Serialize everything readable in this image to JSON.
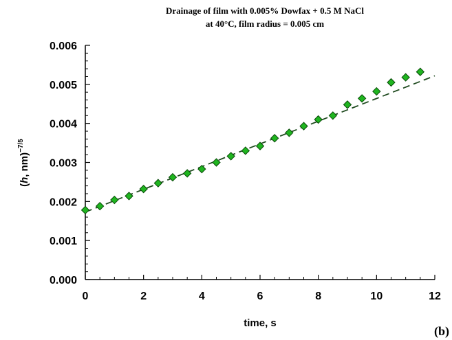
{
  "chart_data": {
    "type": "scatter",
    "title_line1": "Drainage of film with 0.005% Dowfax + 0.5 M NaCl",
    "title_line2": "at 40°C, film radius = 0.005 cm",
    "xlabel": "time, s",
    "ylabel": {
      "open": "(",
      "var": "h",
      "rest": ", nm)",
      "exp": "−7/5"
    },
    "panel_label": "(b)",
    "xlim": [
      0,
      12
    ],
    "ylim": [
      0,
      0.006
    ],
    "x_ticks": [
      "0",
      "2",
      "4",
      "6",
      "8",
      "10",
      "12"
    ],
    "y_ticks": [
      "0.000",
      "0.001",
      "0.002",
      "0.003",
      "0.004",
      "0.005",
      "0.006"
    ],
    "grid": false,
    "series": [
      {
        "marker": "diamond",
        "color": "#1fb51f",
        "edge_color": "#0a4a0a",
        "x": [
          0,
          0.5,
          1,
          1.5,
          2,
          2.5,
          3,
          3.5,
          4,
          4.5,
          5,
          5.5,
          6,
          6.5,
          7,
          7.5,
          8,
          8.5,
          9,
          9.5,
          10,
          10.5,
          11,
          11.5
        ],
        "y": [
          0.00178,
          0.00188,
          0.00204,
          0.00214,
          0.00232,
          0.00247,
          0.00262,
          0.00272,
          0.00283,
          0.003,
          0.00316,
          0.0033,
          0.00342,
          0.00362,
          0.00376,
          0.00393,
          0.0041,
          0.0042,
          0.00448,
          0.00464,
          0.00482,
          0.00505,
          0.00518,
          0.00532
        ]
      }
    ],
    "fit_line": {
      "style": "dashed",
      "color": "#1f4a1f",
      "x": [
        0,
        12
      ],
      "y": [
        0.00173,
        0.00522
      ]
    }
  }
}
